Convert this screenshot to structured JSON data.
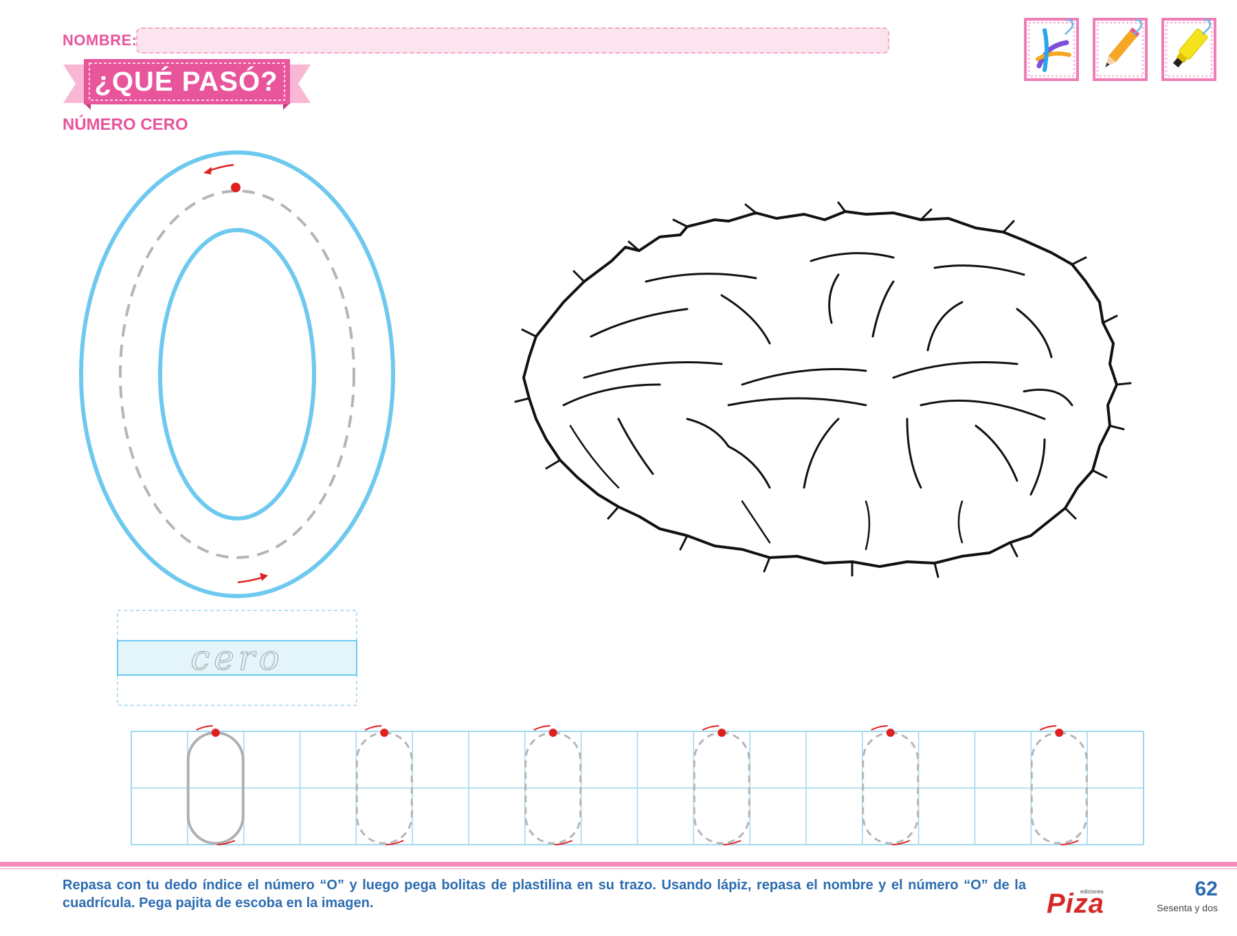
{
  "header": {
    "name_label": "NOMBRE:",
    "title": "¿QUÉ PASÓ?",
    "subtitle": "NÚMERO CERO"
  },
  "materials": [
    {
      "icon": "plasticine-icon"
    },
    {
      "icon": "pencil-icon"
    },
    {
      "icon": "glue-icon"
    }
  ],
  "word_trace": "cero",
  "grid": {
    "rows": 2,
    "columns": 18,
    "trace_digits": [
      {
        "column": 1,
        "style": "solid"
      },
      {
        "column": 4,
        "style": "dashed"
      },
      {
        "column": 7,
        "style": "dashed"
      },
      {
        "column": 10,
        "style": "dashed"
      },
      {
        "column": 13,
        "style": "dashed"
      },
      {
        "column": 16,
        "style": "dashed"
      }
    ]
  },
  "footer": {
    "instructions": "Repasa con tu dedo índice el número “O” y luego pega bolitas de plastilina en su trazo. Usando lápiz, repasa el nombre y el número “O” de la cuadrícula. Pega pajita de escoba en la imagen.",
    "brand_small": "ediciones",
    "brand": "Piza",
    "page_number": "62",
    "page_words": "Sesenta y dos"
  },
  "colors": {
    "pink": "#e8559a",
    "blue_outline": "#6ec9ef",
    "grid_blue": "#9fd6ee",
    "red_dot": "#e02020",
    "footer_text": "#2b6cb0"
  }
}
